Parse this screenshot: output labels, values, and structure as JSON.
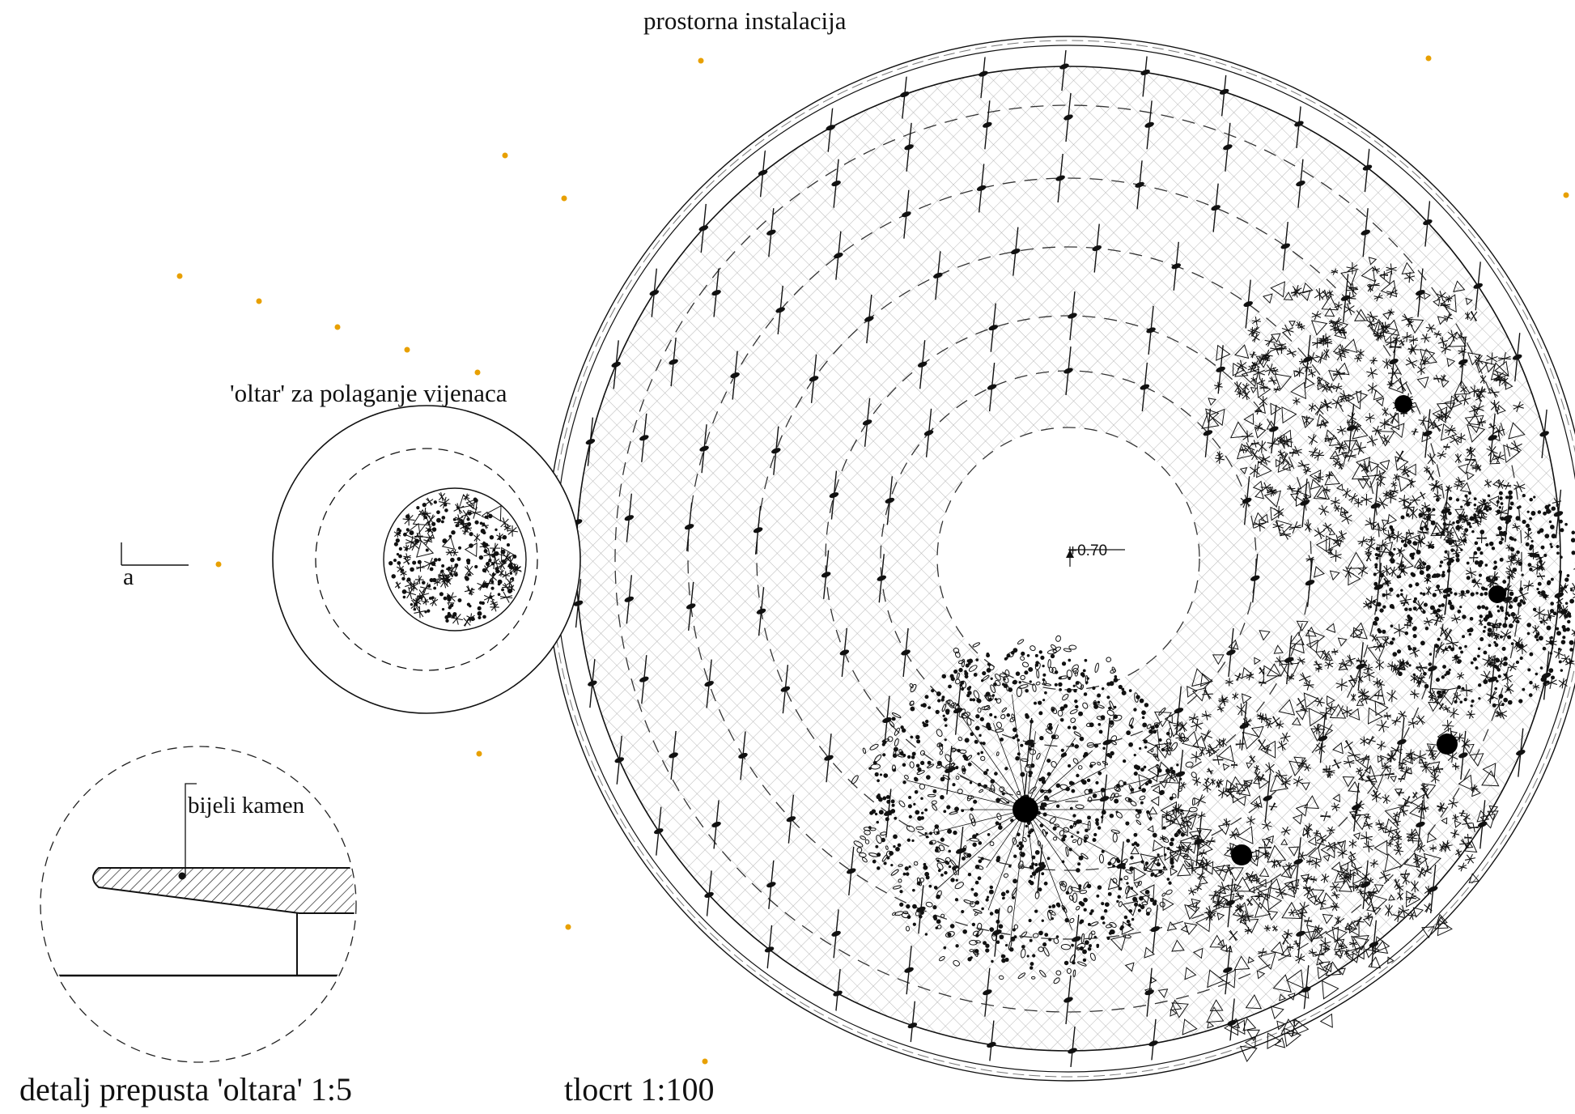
{
  "labels": {
    "installation": "prostorna instalacija",
    "altar": "'oltar' za polaganje vijenaca",
    "section_marker": "a",
    "stone": "bijeli kamen",
    "level": "+0.70",
    "detail_title": "detalj prepusta 'oltara' 1:5",
    "plan_title": "tlocrt 1:100"
  },
  "colors": {
    "line": "#111111",
    "hatch": "#b8b8b8",
    "accent_dot": "#e8a000"
  }
}
